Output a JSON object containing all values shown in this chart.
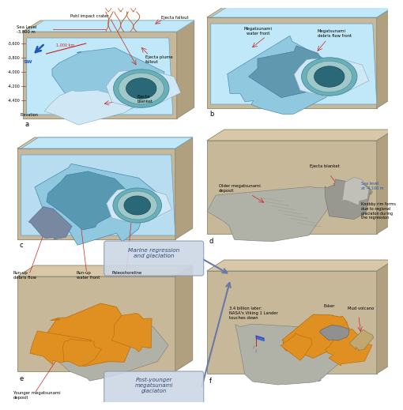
{
  "background": "#ffffff",
  "face_color": "#c8b89a",
  "top_color": "#d8c8a8",
  "side_color": "#b0a080",
  "edge_color": "#888870",
  "water_light": "#c0e8f8",
  "water_mid": "#90c8e0",
  "water_dark": "#50a0c0",
  "crater_outer": "#6ab0b8",
  "crater_ring": "#a0c8c8",
  "crater_inner": "#2a6878",
  "deposit_gray": "#b0b2a8",
  "deposit_gray2": "#989890",
  "deposit_orange": "#e09020",
  "ejecta_light": "#d0e8f5",
  "marine_box_color": "#c8d8e8",
  "marine_box_edge": "#8090a8",
  "marine_text_color": "#3050a0",
  "panel_label_size": 6,
  "annot_size": 3.8,
  "elevation_labels": [
    "-3,600",
    "-3,800",
    "-4,000",
    "-4,200",
    "-4,400"
  ],
  "marine_text": "Marine regression\nand glaciation",
  "post_text": "Post-younger\nmegatsunami\nglaciaton"
}
